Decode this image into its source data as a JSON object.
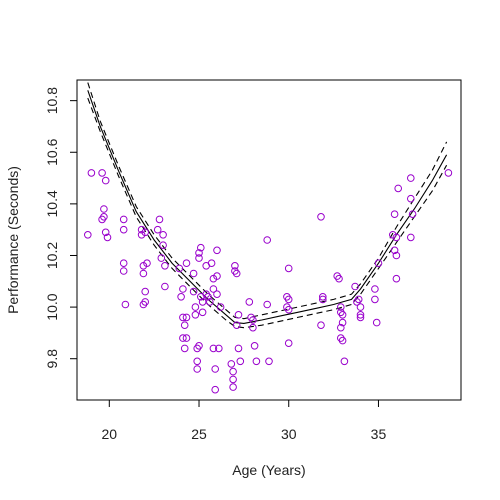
{
  "chart_data": {
    "type": "scatter",
    "title": "",
    "xlabel": "Age (Years)",
    "ylabel": "Performance (Seconds)",
    "xlim": [
      18.2,
      39.6
    ],
    "ylim": [
      9.64,
      10.88
    ],
    "xticks": [
      20,
      25,
      30,
      35
    ],
    "yticks": [
      9.8,
      10.0,
      10.2,
      10.4,
      10.6,
      10.8
    ],
    "x_tick_labels": [
      "20",
      "25",
      "30",
      "35"
    ],
    "y_tick_labels": [
      "9.8",
      "10.0",
      "10.2",
      "10.4",
      "10.6",
      "10.8"
    ],
    "grid": false,
    "legend": "none",
    "colors": {
      "points": "#9900cc",
      "fit": "#000000",
      "axes": "#000000"
    },
    "points": [
      [
        18.8,
        10.28
      ],
      [
        19.0,
        10.52
      ],
      [
        19.6,
        10.52
      ],
      [
        19.6,
        10.34
      ],
      [
        19.7,
        10.35
      ],
      [
        19.7,
        10.38
      ],
      [
        19.8,
        10.49
      ],
      [
        19.8,
        10.29
      ],
      [
        19.9,
        10.27
      ],
      [
        20.8,
        10.34
      ],
      [
        20.8,
        10.3
      ],
      [
        20.8,
        10.17
      ],
      [
        20.8,
        10.14
      ],
      [
        20.9,
        10.01
      ],
      [
        21.8,
        10.3
      ],
      [
        21.8,
        10.28
      ],
      [
        21.9,
        10.16
      ],
      [
        21.9,
        10.13
      ],
      [
        22.0,
        10.06
      ],
      [
        22.0,
        10.02
      ],
      [
        21.9,
        10.01
      ],
      [
        22.0,
        10.29
      ],
      [
        22.1,
        10.17
      ],
      [
        22.7,
        10.3
      ],
      [
        22.8,
        10.34
      ],
      [
        22.9,
        10.19
      ],
      [
        23.0,
        10.28
      ],
      [
        23.0,
        10.24
      ],
      [
        23.1,
        10.16
      ],
      [
        23.1,
        10.08
      ],
      [
        23.9,
        10.15
      ],
      [
        24.0,
        10.04
      ],
      [
        24.1,
        10.07
      ],
      [
        24.1,
        9.96
      ],
      [
        24.1,
        9.88
      ],
      [
        24.2,
        9.84
      ],
      [
        24.2,
        9.93
      ],
      [
        24.3,
        9.96
      ],
      [
        24.3,
        9.88
      ],
      [
        24.3,
        10.17
      ],
      [
        24.7,
        10.13
      ],
      [
        24.7,
        10.06
      ],
      [
        24.8,
        10.0
      ],
      [
        24.8,
        9.97
      ],
      [
        24.9,
        9.84
      ],
      [
        24.9,
        9.79
      ],
      [
        24.9,
        9.76
      ],
      [
        25.0,
        9.85
      ],
      [
        25.0,
        10.19
      ],
      [
        25.1,
        10.04
      ],
      [
        25.2,
        10.02
      ],
      [
        25.2,
        9.98
      ],
      [
        25.0,
        10.21
      ],
      [
        25.1,
        10.23
      ],
      [
        25.4,
        10.16
      ],
      [
        25.4,
        10.05
      ],
      [
        25.5,
        10.04
      ],
      [
        25.6,
        10.02
      ],
      [
        25.7,
        10.17
      ],
      [
        25.8,
        10.11
      ],
      [
        25.8,
        10.07
      ],
      [
        25.8,
        9.84
      ],
      [
        25.9,
        9.76
      ],
      [
        25.9,
        9.68
      ],
      [
        26.0,
        10.22
      ],
      [
        26.0,
        10.12
      ],
      [
        26.0,
        10.05
      ],
      [
        26.1,
        9.84
      ],
      [
        26.2,
        10.0
      ],
      [
        26.8,
        9.78
      ],
      [
        26.9,
        9.75
      ],
      [
        26.9,
        9.72
      ],
      [
        26.9,
        9.69
      ],
      [
        27.0,
        10.16
      ],
      [
        27.0,
        10.14
      ],
      [
        27.1,
        10.13
      ],
      [
        27.1,
        9.93
      ],
      [
        27.2,
        9.97
      ],
      [
        27.2,
        9.84
      ],
      [
        27.3,
        9.79
      ],
      [
        27.8,
        10.02
      ],
      [
        27.9,
        9.96
      ],
      [
        28.0,
        9.95
      ],
      [
        28.0,
        9.92
      ],
      [
        28.1,
        9.85
      ],
      [
        28.2,
        9.79
      ],
      [
        28.8,
        10.26
      ],
      [
        28.8,
        10.01
      ],
      [
        28.9,
        9.79
      ],
      [
        29.9,
        10.04
      ],
      [
        29.9,
        10.0
      ],
      [
        30.0,
        10.15
      ],
      [
        30.0,
        10.03
      ],
      [
        30.0,
        9.99
      ],
      [
        30.0,
        9.86
      ],
      [
        31.8,
        10.35
      ],
      [
        31.9,
        10.04
      ],
      [
        31.9,
        10.03
      ],
      [
        31.8,
        9.93
      ],
      [
        32.7,
        10.12
      ],
      [
        32.8,
        10.11
      ],
      [
        32.9,
        10.0
      ],
      [
        32.9,
        9.98
      ],
      [
        32.9,
        9.92
      ],
      [
        32.9,
        9.88
      ],
      [
        33.0,
        9.87
      ],
      [
        33.1,
        9.79
      ],
      [
        33.0,
        9.97
      ],
      [
        33.0,
        9.94
      ],
      [
        33.7,
        10.08
      ],
      [
        33.8,
        10.02
      ],
      [
        33.9,
        10.03
      ],
      [
        34.0,
        10.0
      ],
      [
        34.0,
        9.97
      ],
      [
        34.0,
        9.96
      ],
      [
        34.8,
        10.07
      ],
      [
        34.8,
        10.03
      ],
      [
        34.9,
        9.94
      ],
      [
        35.0,
        10.17
      ],
      [
        35.8,
        10.28
      ],
      [
        35.9,
        10.36
      ],
      [
        36.0,
        10.27
      ],
      [
        36.0,
        10.11
      ],
      [
        36.1,
        10.46
      ],
      [
        35.9,
        10.22
      ],
      [
        36.0,
        10.2
      ],
      [
        36.8,
        10.5
      ],
      [
        36.8,
        10.42
      ],
      [
        36.9,
        10.36
      ],
      [
        36.8,
        10.27
      ],
      [
        38.9,
        10.52
      ]
    ],
    "fit_line": {
      "x": [
        18.8,
        19.5,
        20.5,
        21.5,
        22.5,
        23.5,
        24.5,
        25.5,
        26.5,
        27.0,
        27.5,
        28.5,
        29.5,
        30.5,
        31.5,
        32.5,
        33.0,
        33.5,
        34.0,
        35.0,
        36.0,
        37.0,
        38.0,
        38.8
      ],
      "y": [
        10.84,
        10.7,
        10.53,
        10.37,
        10.26,
        10.17,
        10.1,
        10.03,
        9.97,
        9.94,
        9.937,
        9.95,
        9.965,
        9.98,
        9.995,
        10.01,
        10.02,
        10.03,
        10.07,
        10.17,
        10.28,
        10.38,
        10.49,
        10.59
      ]
    },
    "band_upper": {
      "x": [
        18.8,
        19.5,
        20.5,
        21.5,
        22.5,
        23.5,
        24.5,
        25.5,
        26.5,
        27.0,
        27.5,
        28.5,
        29.5,
        30.5,
        31.5,
        32.5,
        33.0,
        33.5,
        34.0,
        35.0,
        36.0,
        37.0,
        38.0,
        38.8
      ],
      "y": [
        10.87,
        10.72,
        10.55,
        10.39,
        10.28,
        10.19,
        10.12,
        10.05,
        9.99,
        9.96,
        9.955,
        9.97,
        9.985,
        10.0,
        10.015,
        10.03,
        10.04,
        10.05,
        10.09,
        10.19,
        10.31,
        10.42,
        10.53,
        10.64
      ]
    },
    "band_lower": {
      "x": [
        18.8,
        19.5,
        20.5,
        21.5,
        22.5,
        23.5,
        24.5,
        25.5,
        26.5,
        27.0,
        27.5,
        28.5,
        29.5,
        30.5,
        31.5,
        32.5,
        33.0,
        33.5,
        34.0,
        35.0,
        36.0,
        37.0,
        38.0,
        38.8
      ],
      "y": [
        10.81,
        10.68,
        10.51,
        10.35,
        10.24,
        10.15,
        10.08,
        10.01,
        9.95,
        9.925,
        9.92,
        9.93,
        9.945,
        9.96,
        9.975,
        9.99,
        10.0,
        10.01,
        10.05,
        10.15,
        10.25,
        10.35,
        10.45,
        10.55
      ]
    }
  }
}
